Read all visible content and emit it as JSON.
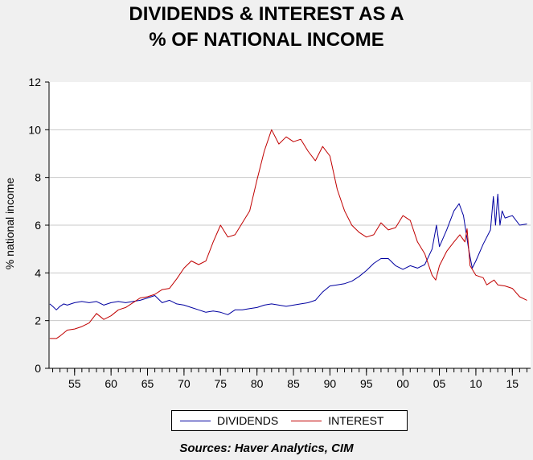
{
  "chart_data": {
    "type": "line",
    "title_line1": "DIVIDENDS & INTEREST AS A",
    "title_line2": "% OF NATIONAL INCOME",
    "ylabel": "% national income",
    "xlabel": "",
    "xlim": [
      1951.5,
      2017.5
    ],
    "ylim": [
      0,
      12
    ],
    "yticks": [
      0,
      2,
      4,
      6,
      8,
      10,
      12
    ],
    "xticks": [
      {
        "year": 1955,
        "label": "55"
      },
      {
        "year": 1960,
        "label": "60"
      },
      {
        "year": 1965,
        "label": "65"
      },
      {
        "year": 1970,
        "label": "70"
      },
      {
        "year": 1975,
        "label": "75"
      },
      {
        "year": 1980,
        "label": "80"
      },
      {
        "year": 1985,
        "label": "85"
      },
      {
        "year": 1990,
        "label": "90"
      },
      {
        "year": 1995,
        "label": "95"
      },
      {
        "year": 2000,
        "label": "00"
      },
      {
        "year": 2005,
        "label": "05"
      },
      {
        "year": 2010,
        "label": "10"
      },
      {
        "year": 2015,
        "label": "15"
      }
    ],
    "grid": "horizontal",
    "legend_position": "bottom",
    "series": [
      {
        "name": "DIVIDENDS",
        "color": "#0000a0",
        "points": [
          [
            1951.6,
            2.7
          ],
          [
            1952.0,
            2.6
          ],
          [
            1952.5,
            2.45
          ],
          [
            1953.0,
            2.6
          ],
          [
            1953.5,
            2.7
          ],
          [
            1954.0,
            2.65
          ],
          [
            1955.0,
            2.75
          ],
          [
            1956.0,
            2.8
          ],
          [
            1957.0,
            2.75
          ],
          [
            1958.0,
            2.8
          ],
          [
            1959.0,
            2.65
          ],
          [
            1960.0,
            2.75
          ],
          [
            1961.0,
            2.8
          ],
          [
            1962.0,
            2.75
          ],
          [
            1963.0,
            2.8
          ],
          [
            1964.0,
            2.85
          ],
          [
            1965.0,
            2.95
          ],
          [
            1966.0,
            3.05
          ],
          [
            1967.0,
            2.75
          ],
          [
            1968.0,
            2.85
          ],
          [
            1969.0,
            2.7
          ],
          [
            1970.0,
            2.65
          ],
          [
            1971.0,
            2.55
          ],
          [
            1972.0,
            2.45
          ],
          [
            1973.0,
            2.35
          ],
          [
            1974.0,
            2.4
          ],
          [
            1975.0,
            2.35
          ],
          [
            1976.0,
            2.25
          ],
          [
            1977.0,
            2.45
          ],
          [
            1978.0,
            2.45
          ],
          [
            1979.0,
            2.5
          ],
          [
            1980.0,
            2.55
          ],
          [
            1981.0,
            2.65
          ],
          [
            1982.0,
            2.7
          ],
          [
            1983.0,
            2.65
          ],
          [
            1984.0,
            2.6
          ],
          [
            1985.0,
            2.65
          ],
          [
            1986.0,
            2.7
          ],
          [
            1987.0,
            2.75
          ],
          [
            1988.0,
            2.85
          ],
          [
            1989.0,
            3.2
          ],
          [
            1990.0,
            3.45
          ],
          [
            1991.0,
            3.5
          ],
          [
            1992.0,
            3.55
          ],
          [
            1993.0,
            3.65
          ],
          [
            1994.0,
            3.85
          ],
          [
            1995.0,
            4.1
          ],
          [
            1996.0,
            4.4
          ],
          [
            1997.0,
            4.6
          ],
          [
            1998.0,
            4.6
          ],
          [
            1999.0,
            4.3
          ],
          [
            2000.0,
            4.15
          ],
          [
            2001.0,
            4.3
          ],
          [
            2002.0,
            4.2
          ],
          [
            2003.0,
            4.35
          ],
          [
            2004.0,
            5.0
          ],
          [
            2004.6,
            6.0
          ],
          [
            2005.0,
            5.1
          ],
          [
            2006.0,
            5.8
          ],
          [
            2007.0,
            6.6
          ],
          [
            2007.7,
            6.9
          ],
          [
            2008.3,
            6.4
          ],
          [
            2009.0,
            5.0
          ],
          [
            2009.5,
            4.2
          ],
          [
            2010.0,
            4.5
          ],
          [
            2011.0,
            5.2
          ],
          [
            2012.0,
            5.8
          ],
          [
            2012.4,
            7.2
          ],
          [
            2012.7,
            6.0
          ],
          [
            2013.0,
            7.3
          ],
          [
            2013.3,
            6.0
          ],
          [
            2013.6,
            6.6
          ],
          [
            2014.0,
            6.3
          ],
          [
            2015.0,
            6.4
          ],
          [
            2016.0,
            6.0
          ],
          [
            2017.0,
            6.05
          ]
        ]
      },
      {
        "name": "INTEREST",
        "color": "#c00000",
        "points": [
          [
            1951.6,
            1.25
          ],
          [
            1952.5,
            1.25
          ],
          [
            1953.0,
            1.35
          ],
          [
            1954.0,
            1.6
          ],
          [
            1955.0,
            1.65
          ],
          [
            1956.0,
            1.75
          ],
          [
            1957.0,
            1.9
          ],
          [
            1958.0,
            2.3
          ],
          [
            1959.0,
            2.05
          ],
          [
            1960.0,
            2.2
          ],
          [
            1961.0,
            2.45
          ],
          [
            1962.0,
            2.55
          ],
          [
            1963.0,
            2.75
          ],
          [
            1964.0,
            2.95
          ],
          [
            1965.0,
            3.0
          ],
          [
            1966.0,
            3.1
          ],
          [
            1967.0,
            3.3
          ],
          [
            1968.0,
            3.35
          ],
          [
            1969.0,
            3.75
          ],
          [
            1970.0,
            4.2
          ],
          [
            1971.0,
            4.5
          ],
          [
            1972.0,
            4.35
          ],
          [
            1973.0,
            4.5
          ],
          [
            1974.0,
            5.3
          ],
          [
            1975.0,
            6.0
          ],
          [
            1976.0,
            5.5
          ],
          [
            1977.0,
            5.6
          ],
          [
            1978.0,
            6.1
          ],
          [
            1979.0,
            6.6
          ],
          [
            1980.0,
            7.9
          ],
          [
            1981.0,
            9.1
          ],
          [
            1982.0,
            10.0
          ],
          [
            1983.0,
            9.4
          ],
          [
            1984.0,
            9.7
          ],
          [
            1985.0,
            9.5
          ],
          [
            1986.0,
            9.6
          ],
          [
            1987.0,
            9.1
          ],
          [
            1988.0,
            8.7
          ],
          [
            1989.0,
            9.3
          ],
          [
            1990.0,
            8.9
          ],
          [
            1991.0,
            7.5
          ],
          [
            1992.0,
            6.6
          ],
          [
            1993.0,
            6.0
          ],
          [
            1994.0,
            5.7
          ],
          [
            1995.0,
            5.5
          ],
          [
            1996.0,
            5.6
          ],
          [
            1997.0,
            6.1
          ],
          [
            1998.0,
            5.8
          ],
          [
            1999.0,
            5.9
          ],
          [
            2000.0,
            6.4
          ],
          [
            2001.0,
            6.2
          ],
          [
            2002.0,
            5.3
          ],
          [
            2003.0,
            4.8
          ],
          [
            2004.0,
            3.9
          ],
          [
            2004.5,
            3.7
          ],
          [
            2005.0,
            4.3
          ],
          [
            2006.0,
            4.9
          ],
          [
            2007.0,
            5.3
          ],
          [
            2007.8,
            5.6
          ],
          [
            2008.5,
            5.3
          ],
          [
            2008.8,
            5.85
          ],
          [
            2009.2,
            4.3
          ],
          [
            2010.0,
            3.9
          ],
          [
            2011.0,
            3.8
          ],
          [
            2011.5,
            3.5
          ],
          [
            2012.5,
            3.7
          ],
          [
            2013.0,
            3.5
          ],
          [
            2014.0,
            3.45
          ],
          [
            2015.0,
            3.35
          ],
          [
            2016.0,
            3.0
          ],
          [
            2017.0,
            2.85
          ]
        ]
      }
    ],
    "source": "Sources:  Haver Analytics, CIM"
  }
}
